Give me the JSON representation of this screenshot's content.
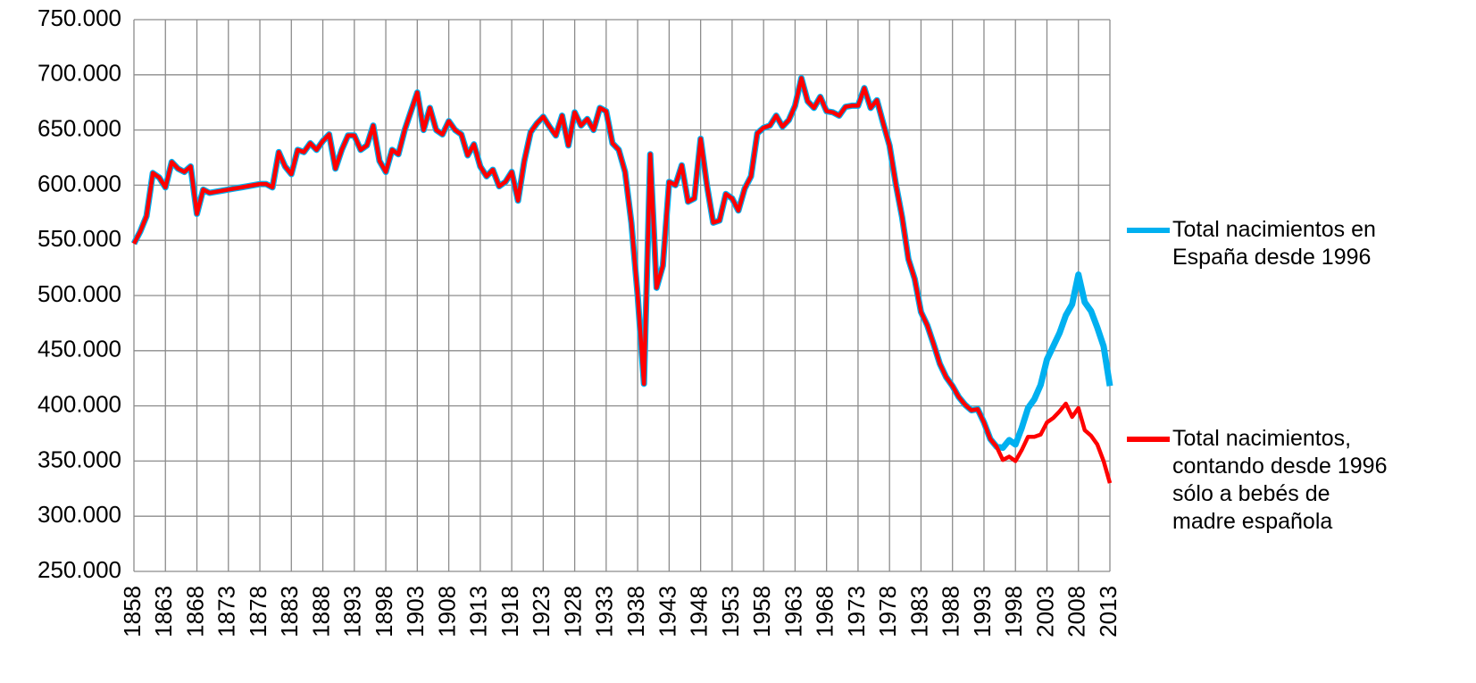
{
  "chart_data": {
    "type": "line",
    "x": [
      1858,
      1859,
      1860,
      1861,
      1862,
      1863,
      1864,
      1865,
      1866,
      1867,
      1868,
      1869,
      1870,
      1871,
      1872,
      1873,
      1874,
      1875,
      1876,
      1877,
      1878,
      1879,
      1880,
      1881,
      1882,
      1883,
      1884,
      1885,
      1886,
      1887,
      1888,
      1889,
      1890,
      1891,
      1892,
      1893,
      1894,
      1895,
      1896,
      1897,
      1898,
      1899,
      1900,
      1901,
      1902,
      1903,
      1904,
      1905,
      1906,
      1907,
      1908,
      1909,
      1910,
      1911,
      1912,
      1913,
      1914,
      1915,
      1916,
      1917,
      1918,
      1919,
      1920,
      1921,
      1922,
      1923,
      1924,
      1925,
      1926,
      1927,
      1928,
      1929,
      1930,
      1931,
      1932,
      1933,
      1934,
      1935,
      1936,
      1937,
      1938,
      1939,
      1940,
      1941,
      1942,
      1943,
      1944,
      1945,
      1946,
      1947,
      1948,
      1949,
      1950,
      1951,
      1952,
      1953,
      1954,
      1955,
      1956,
      1957,
      1958,
      1959,
      1960,
      1961,
      1962,
      1963,
      1964,
      1965,
      1966,
      1967,
      1968,
      1969,
      1970,
      1971,
      1972,
      1973,
      1974,
      1975,
      1976,
      1977,
      1978,
      1979,
      1980,
      1981,
      1982,
      1983,
      1984,
      1985,
      1986,
      1987,
      1988,
      1989,
      1990,
      1991,
      1992,
      1993,
      1994,
      1995,
      1996,
      1997,
      1998,
      1999,
      2000,
      2001,
      2002,
      2003,
      2004,
      2005,
      2006,
      2007,
      2008,
      2009,
      2010,
      2011,
      2012,
      2013
    ],
    "series": [
      {
        "name": "Total nacimientos en España desde 1996",
        "color": "#00b0f0",
        "values": [
          547000,
          558000,
          572000,
          611000,
          607000,
          598000,
          621000,
          615000,
          612000,
          617000,
          574000,
          596000,
          593000,
          594000,
          595000,
          596000,
          597000,
          598000,
          599000,
          600000,
          601000,
          601000,
          598000,
          630000,
          617000,
          610000,
          632000,
          630000,
          638000,
          632000,
          640000,
          646000,
          615000,
          632000,
          645000,
          645000,
          632000,
          636000,
          654000,
          622000,
          612000,
          632000,
          628000,
          650000,
          667000,
          684000,
          650000,
          670000,
          650000,
          646000,
          658000,
          650000,
          646000,
          627000,
          637000,
          617000,
          608000,
          614000,
          599000,
          603000,
          612000,
          586000,
          622000,
          648000,
          656000,
          662000,
          653000,
          645000,
          663000,
          636000,
          666000,
          654000,
          660000,
          650000,
          670000,
          667000,
          638000,
          632000,
          612000,
          566000,
          500000,
          420000,
          628000,
          507000,
          527000,
          603000,
          600000,
          618000,
          585000,
          588000,
          642000,
          600000,
          566000,
          568000,
          592000,
          588000,
          577000,
          597000,
          608000,
          647000,
          652000,
          654000,
          663000,
          653000,
          659000,
          672000,
          697000,
          676000,
          670000,
          680000,
          667000,
          666000,
          663000,
          671000,
          672000,
          672000,
          688000,
          670000,
          677000,
          656000,
          636000,
          601000,
          571000,
          533000,
          515000,
          485000,
          473000,
          456000,
          438000,
          426000,
          418000,
          408000,
          401000,
          396000,
          397000,
          385000,
          370000,
          363000,
          362000,
          369000,
          365000,
          380000,
          398000,
          406000,
          419000,
          442000,
          454000,
          466000,
          482000,
          492000,
          519000,
          494000,
          486000,
          471000,
          454000,
          418000
        ]
      },
      {
        "name": "Total nacimientos, contando desde 1996 sólo a bebés de madre española",
        "color": "#ff0000",
        "values": [
          547000,
          558000,
          572000,
          611000,
          607000,
          598000,
          621000,
          615000,
          612000,
          617000,
          574000,
          596000,
          593000,
          594000,
          595000,
          596000,
          597000,
          598000,
          599000,
          600000,
          601000,
          601000,
          598000,
          630000,
          617000,
          610000,
          632000,
          630000,
          638000,
          632000,
          640000,
          646000,
          615000,
          632000,
          645000,
          645000,
          632000,
          636000,
          654000,
          622000,
          612000,
          632000,
          628000,
          650000,
          667000,
          684000,
          650000,
          670000,
          650000,
          646000,
          658000,
          650000,
          646000,
          627000,
          637000,
          617000,
          608000,
          614000,
          599000,
          603000,
          612000,
          586000,
          622000,
          648000,
          656000,
          662000,
          653000,
          645000,
          663000,
          636000,
          666000,
          654000,
          660000,
          650000,
          670000,
          667000,
          638000,
          632000,
          612000,
          566000,
          500000,
          420000,
          628000,
          507000,
          527000,
          603000,
          600000,
          618000,
          585000,
          588000,
          642000,
          600000,
          566000,
          568000,
          592000,
          588000,
          577000,
          597000,
          608000,
          647000,
          652000,
          654000,
          663000,
          653000,
          659000,
          672000,
          697000,
          676000,
          670000,
          680000,
          667000,
          666000,
          663000,
          671000,
          672000,
          672000,
          688000,
          670000,
          677000,
          656000,
          636000,
          601000,
          571000,
          533000,
          515000,
          485000,
          473000,
          456000,
          438000,
          426000,
          418000,
          408000,
          401000,
          396000,
          397000,
          385000,
          370000,
          363000,
          351000,
          354000,
          350000,
          360000,
          372000,
          372000,
          374000,
          385000,
          389000,
          395000,
          402000,
          390000,
          398000,
          378000,
          373000,
          365000,
          350000,
          330000
        ]
      }
    ],
    "xlim": [
      1858,
      2013
    ],
    "xticks": [
      1858,
      1863,
      1868,
      1873,
      1878,
      1883,
      1888,
      1893,
      1898,
      1903,
      1908,
      1913,
      1918,
      1923,
      1928,
      1933,
      1938,
      1943,
      1948,
      1953,
      1958,
      1963,
      1968,
      1973,
      1978,
      1983,
      1988,
      1993,
      1998,
      2003,
      2008,
      2013
    ],
    "ylim": [
      250000,
      750000
    ],
    "yticks": [
      {
        "value": 250000,
        "label": "250.000"
      },
      {
        "value": 300000,
        "label": "300.000"
      },
      {
        "value": 350000,
        "label": "350.000"
      },
      {
        "value": 400000,
        "label": "400.000"
      },
      {
        "value": 450000,
        "label": "450.000"
      },
      {
        "value": 500000,
        "label": "500.000"
      },
      {
        "value": 550000,
        "label": "550.000"
      },
      {
        "value": 600000,
        "label": "600.000"
      },
      {
        "value": 650000,
        "label": "650.000"
      },
      {
        "value": 700000,
        "label": "700.000"
      },
      {
        "value": 750000,
        "label": "750.000"
      }
    ],
    "grid": true,
    "legend": "right"
  }
}
